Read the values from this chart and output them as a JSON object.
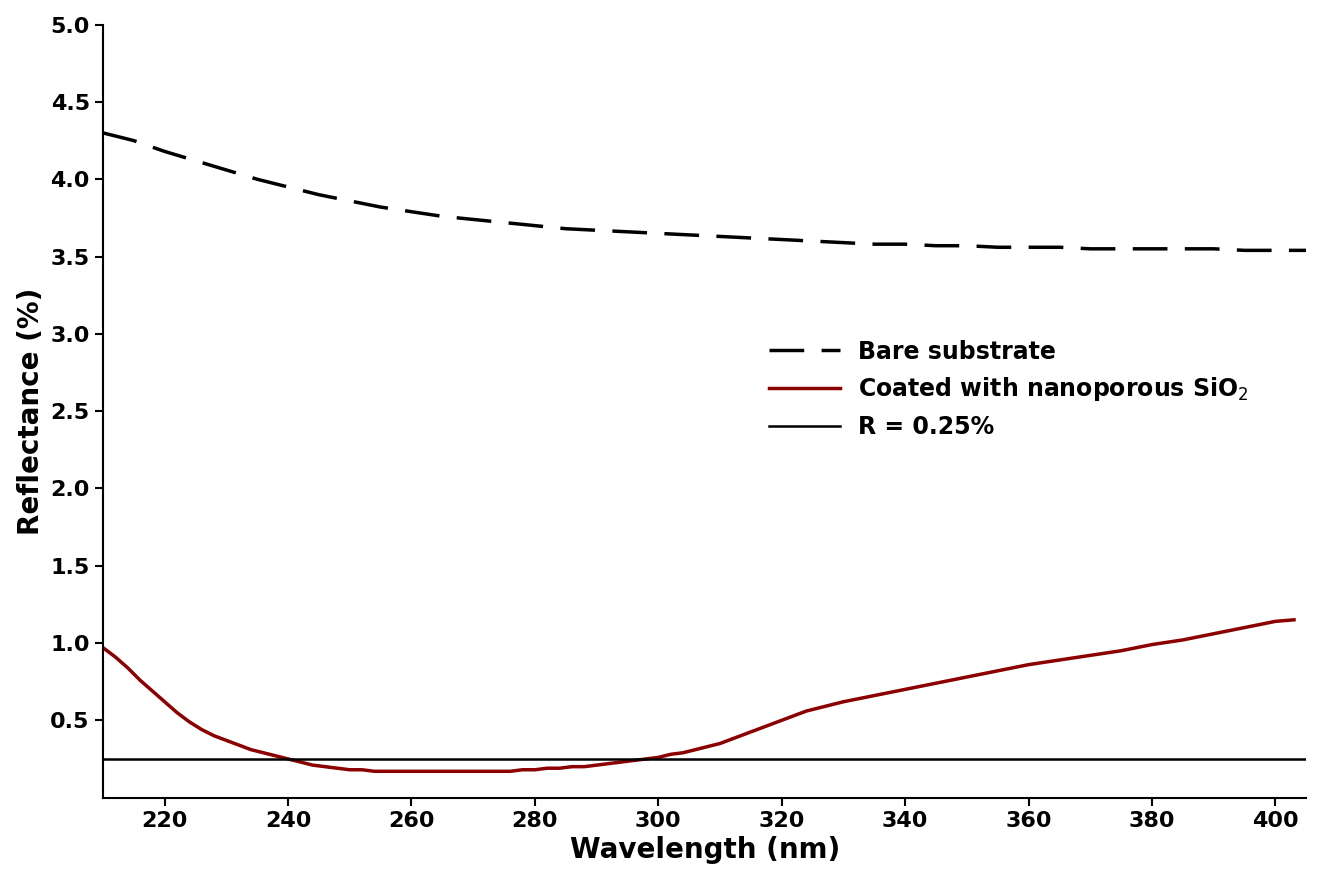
{
  "title": "",
  "xlabel": "Wavelength (nm)",
  "ylabel": "Reflectance (%)",
  "xlim": [
    210,
    405
  ],
  "ylim": [
    0.0,
    5.0
  ],
  "yticks": [
    0.5,
    1.0,
    1.5,
    2.0,
    2.5,
    3.0,
    3.5,
    4.0,
    4.5,
    5.0
  ],
  "xticks": [
    220,
    240,
    260,
    280,
    300,
    320,
    340,
    360,
    380,
    400
  ],
  "r_line_value": 0.25,
  "background_color": "#ffffff",
  "bare_substrate": {
    "x": [
      210,
      215,
      220,
      225,
      230,
      235,
      240,
      245,
      250,
      255,
      260,
      265,
      270,
      275,
      280,
      285,
      290,
      295,
      300,
      305,
      310,
      315,
      320,
      325,
      330,
      335,
      340,
      345,
      350,
      355,
      360,
      365,
      370,
      375,
      380,
      385,
      390,
      395,
      400,
      405
    ],
    "y": [
      4.3,
      4.25,
      4.18,
      4.12,
      4.06,
      4.0,
      3.95,
      3.9,
      3.86,
      3.82,
      3.79,
      3.76,
      3.74,
      3.72,
      3.7,
      3.68,
      3.67,
      3.66,
      3.65,
      3.64,
      3.63,
      3.62,
      3.61,
      3.6,
      3.59,
      3.58,
      3.58,
      3.57,
      3.57,
      3.56,
      3.56,
      3.56,
      3.55,
      3.55,
      3.55,
      3.55,
      3.55,
      3.54,
      3.54,
      3.54
    ],
    "color": "#000000",
    "linewidth": 2.5,
    "label": "Bare substrate"
  },
  "coated": {
    "x": [
      210,
      212,
      214,
      216,
      218,
      220,
      222,
      224,
      226,
      228,
      230,
      232,
      234,
      236,
      238,
      240,
      242,
      244,
      246,
      248,
      250,
      252,
      254,
      256,
      258,
      260,
      262,
      264,
      266,
      268,
      270,
      272,
      274,
      276,
      278,
      280,
      282,
      284,
      286,
      288,
      290,
      292,
      294,
      296,
      298,
      300,
      302,
      304,
      306,
      308,
      310,
      312,
      314,
      316,
      318,
      320,
      322,
      324,
      326,
      328,
      330,
      335,
      340,
      345,
      350,
      355,
      360,
      365,
      370,
      375,
      380,
      385,
      390,
      395,
      400,
      403
    ],
    "y": [
      0.97,
      0.91,
      0.84,
      0.76,
      0.69,
      0.62,
      0.55,
      0.49,
      0.44,
      0.4,
      0.37,
      0.34,
      0.31,
      0.29,
      0.27,
      0.25,
      0.23,
      0.21,
      0.2,
      0.19,
      0.18,
      0.18,
      0.17,
      0.17,
      0.17,
      0.17,
      0.17,
      0.17,
      0.17,
      0.17,
      0.17,
      0.17,
      0.17,
      0.17,
      0.18,
      0.18,
      0.19,
      0.19,
      0.2,
      0.2,
      0.21,
      0.22,
      0.23,
      0.24,
      0.25,
      0.26,
      0.28,
      0.29,
      0.31,
      0.33,
      0.35,
      0.38,
      0.41,
      0.44,
      0.47,
      0.5,
      0.53,
      0.56,
      0.58,
      0.6,
      0.62,
      0.66,
      0.7,
      0.74,
      0.78,
      0.82,
      0.86,
      0.89,
      0.92,
      0.95,
      0.99,
      1.02,
      1.06,
      1.1,
      1.14,
      1.15
    ],
    "color": "#8b0000",
    "linewidth": 2.5,
    "label": "Coated with nanoporous SiO$_2$"
  },
  "legend_fontsize": 17,
  "axis_label_fontsize": 20,
  "tick_fontsize": 16
}
